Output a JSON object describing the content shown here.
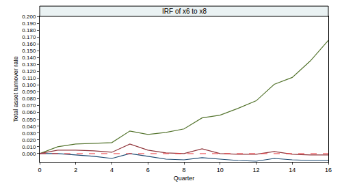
{
  "chart_data": {
    "type": "line",
    "title": "IRF of x6 to x8",
    "x_label": "Quarter",
    "y_label": "Total asset turnover rate",
    "x": [
      0,
      1,
      2,
      3,
      4,
      5,
      6,
      7,
      8,
      9,
      10,
      11,
      12,
      13,
      14,
      15,
      16
    ],
    "series": [
      {
        "color": "#55752f",
        "line_style": "solid",
        "values": [
          0,
          0.01,
          0.014,
          0.015,
          0.016,
          0.033,
          0.028,
          0.031,
          0.036,
          0.052,
          0.056,
          0.066,
          0.077,
          0.101,
          0.111,
          0.135,
          0.165
        ]
      },
      {
        "color": "#90353b",
        "line_style": "solid",
        "values": [
          0,
          0.005,
          0.005,
          0.004,
          0.002,
          0.014,
          0.005,
          0.001,
          0.0,
          0.007,
          0.0,
          -0.001,
          -0.001,
          0.003,
          -0.001,
          -0.002,
          -0.002
        ]
      },
      {
        "color": "#1a476f",
        "line_style": "solid",
        "values": [
          0,
          0.0,
          -0.002,
          -0.004,
          -0.007,
          0.0,
          -0.004,
          -0.008,
          -0.009,
          -0.006,
          -0.008,
          -0.01,
          -0.011,
          -0.007,
          -0.009,
          -0.01,
          -0.01
        ]
      },
      {
        "color": "#e8383d",
        "line_style": "dash",
        "values": [
          0,
          0,
          0,
          0,
          0,
          0,
          0,
          0,
          0,
          0,
          0,
          0,
          0,
          0,
          0,
          0,
          0
        ]
      }
    ],
    "xlim": [
      0,
      16
    ],
    "xticks": [
      0,
      2,
      4,
      6,
      8,
      10,
      12,
      14,
      16
    ],
    "ylim": [
      -0.012,
      0.2
    ],
    "yticks": [
      {
        "value": 0,
        "label": "0.000"
      },
      {
        "value": 0.01,
        "label": "0.010"
      },
      {
        "value": 0.02,
        "label": "0.020"
      },
      {
        "value": 0.03,
        "label": "0.030"
      },
      {
        "value": 0.04,
        "label": "0.040"
      },
      {
        "value": 0.05,
        "label": "0.050"
      },
      {
        "value": 0.06,
        "label": "0.060"
      },
      {
        "value": 0.07,
        "label": "0.070"
      },
      {
        "value": 0.08,
        "label": "0.080"
      },
      {
        "value": 0.09,
        "label": "0.090"
      },
      {
        "value": 0.1,
        "label": "0.100"
      },
      {
        "value": 0.11,
        "label": "0.110"
      },
      {
        "value": 0.12,
        "label": "0.120"
      },
      {
        "value": 0.13,
        "label": "0.130"
      },
      {
        "value": 0.14,
        "label": "0.140"
      },
      {
        "value": 0.15,
        "label": "0.150"
      },
      {
        "value": 0.16,
        "label": "0.160"
      },
      {
        "value": 0.17,
        "label": "0.170"
      },
      {
        "value": 0.18,
        "label": "0.180"
      },
      {
        "value": 0.19,
        "label": "0.190"
      },
      {
        "value": 0.2,
        "label": "0.200"
      }
    ],
    "grid": false
  }
}
